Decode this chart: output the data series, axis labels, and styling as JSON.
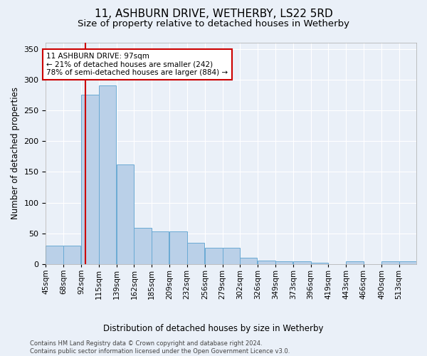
{
  "title": "11, ASHBURN DRIVE, WETHERBY, LS22 5RD",
  "subtitle": "Size of property relative to detached houses in Wetherby",
  "xlabel": "Distribution of detached houses by size in Wetherby",
  "ylabel": "Number of detached properties",
  "footer_line1": "Contains HM Land Registry data © Crown copyright and database right 2024.",
  "footer_line2": "Contains public sector information licensed under the Open Government Licence v3.0.",
  "annotation_title": "11 ASHBURN DRIVE: 97sqm",
  "annotation_line2": "← 21% of detached houses are smaller (242)",
  "annotation_line3": "78% of semi-detached houses are larger (884) →",
  "bar_color": "#bad0e8",
  "bar_edge_color": "#6aaad4",
  "red_line_x": 97,
  "categories": [
    "45sqm",
    "68sqm",
    "92sqm",
    "115sqm",
    "139sqm",
    "162sqm",
    "185sqm",
    "209sqm",
    "232sqm",
    "256sqm",
    "279sqm",
    "302sqm",
    "326sqm",
    "349sqm",
    "373sqm",
    "396sqm",
    "419sqm",
    "443sqm",
    "466sqm",
    "490sqm",
    "513sqm"
  ],
  "bin_edges": [
    45,
    68,
    92,
    115,
    139,
    162,
    185,
    209,
    232,
    256,
    279,
    302,
    326,
    349,
    373,
    396,
    419,
    443,
    466,
    490,
    513
  ],
  "bin_width": 23,
  "values": [
    30,
    30,
    275,
    291,
    162,
    59,
    53,
    53,
    35,
    26,
    26,
    10,
    6,
    5,
    4,
    2,
    0,
    4,
    0,
    4,
    4
  ],
  "ylim": [
    0,
    360
  ],
  "yticks": [
    0,
    50,
    100,
    150,
    200,
    250,
    300,
    350
  ],
  "background_color": "#eaf0f8",
  "plot_bg_color": "#eaf0f8",
  "grid_color": "#ffffff",
  "title_fontsize": 11,
  "subtitle_fontsize": 9.5,
  "label_fontsize": 8.5,
  "tick_fontsize": 7.5,
  "annotation_box_color": "#ffffff",
  "annotation_box_edge": "#cc0000",
  "red_line_color": "#cc0000",
  "footer_fontsize": 6.0
}
